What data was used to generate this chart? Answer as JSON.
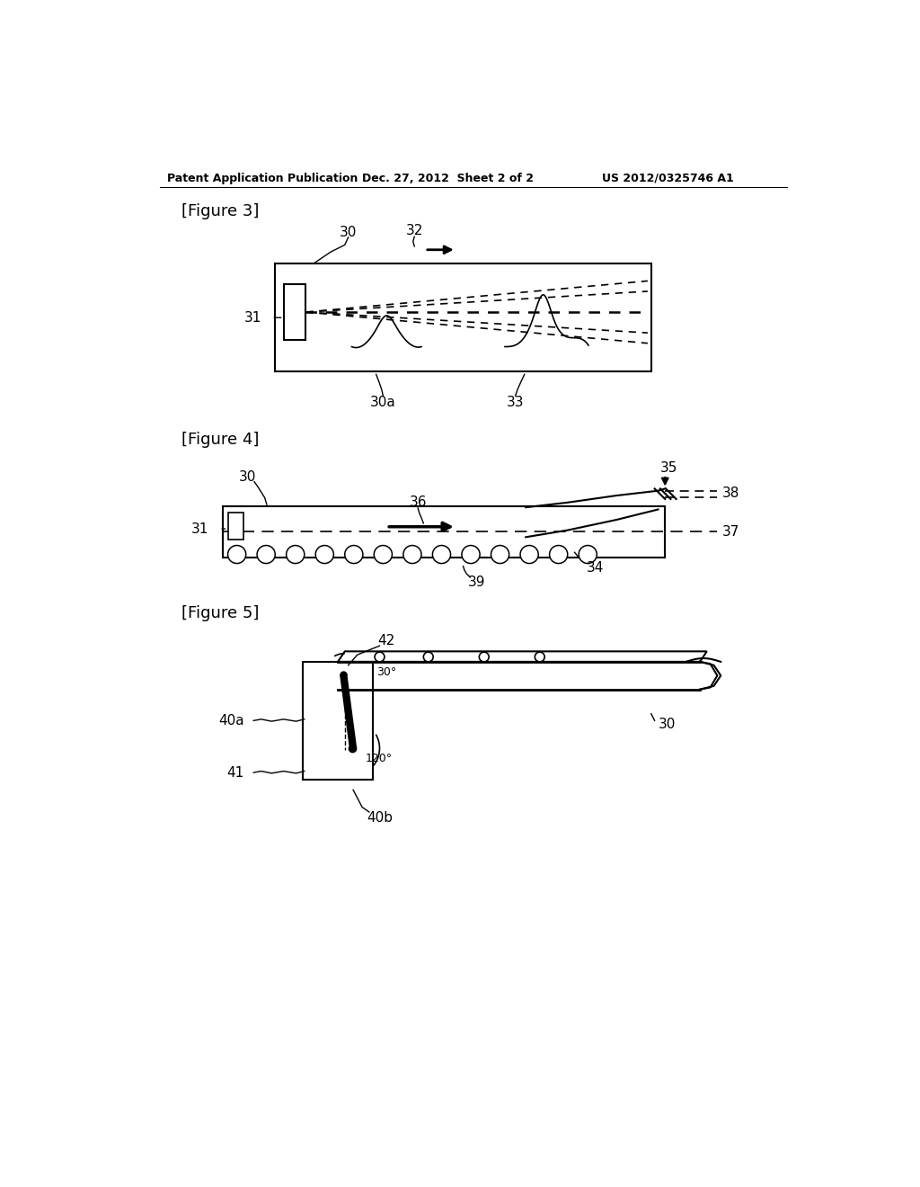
{
  "bg_color": "#ffffff",
  "header_left": "Patent Application Publication",
  "header_mid": "Dec. 27, 2012  Sheet 2 of 2",
  "header_right": "US 2012/0325746 A1",
  "fig3_label": "[Figure 3]",
  "fig4_label": "[Figure 4]",
  "fig5_label": "[Figure 5]",
  "text_color": "#000000",
  "line_color": "#000000"
}
